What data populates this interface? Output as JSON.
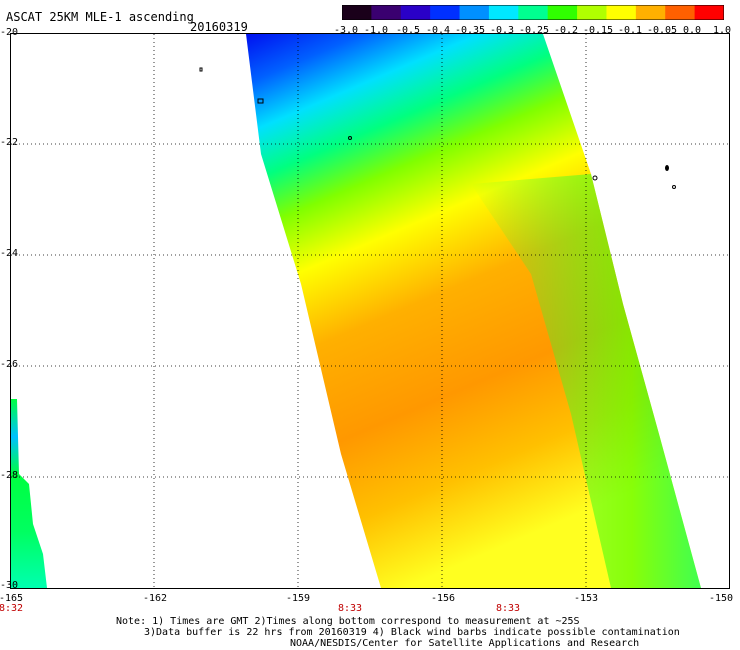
{
  "header": {
    "title": "ASCAT 25KM MLE-1 ascending",
    "date": "20160319"
  },
  "colorbar": {
    "labels": [
      "-3.0",
      "-1.0",
      "-0.5",
      "-0.4",
      "-0.35",
      "-0.3",
      "-0.25",
      "-0.2",
      "-0.15",
      "-0.1",
      "-0.05",
      "0.0",
      "1.0"
    ],
    "colors": [
      "#1a001a",
      "#3a0070",
      "#2a00c8",
      "#0030ff",
      "#0090ff",
      "#00e8ff",
      "#00ff90",
      "#30ff00",
      "#b0ff00",
      "#ffff00",
      "#ffb000",
      "#ff6000",
      "#ff0000"
    ]
  },
  "axes": {
    "lat_labels": [
      "-20",
      "-22",
      "-24",
      "-26",
      "-28",
      "-30"
    ],
    "lon_labels": [
      "-165",
      "-162",
      "-159",
      "-156",
      "-153",
      "-150"
    ],
    "time_labels": [
      "8:32",
      "8:33",
      "8:33"
    ]
  },
  "map_data": {
    "lat_range": [
      -30,
      -20
    ],
    "lon_range": [
      -165,
      -150
    ],
    "swaths": [
      {
        "name": "main",
        "lon_start_top": -160.0,
        "lon_end_top": -154.5,
        "lon_start_bottom": -157.3,
        "lon_end_bottom": -151.3
      },
      {
        "name": "left",
        "lon_start_top": -165.0,
        "lon_end_top": -164.6,
        "lon_start_bottom": -165.0,
        "lon_end_bottom": -164.3
      }
    ]
  },
  "footer": {
    "line1": "Note: 1) Times are GMT 2)Times along bottom correspond to measurement at ~25S",
    "line2": "3)Data buffer is 22 hrs from 20160319 4) Black wind barbs indicate possible contamination",
    "line3": "NOAA/NESDIS/Center for Satellite Applications and Research"
  }
}
